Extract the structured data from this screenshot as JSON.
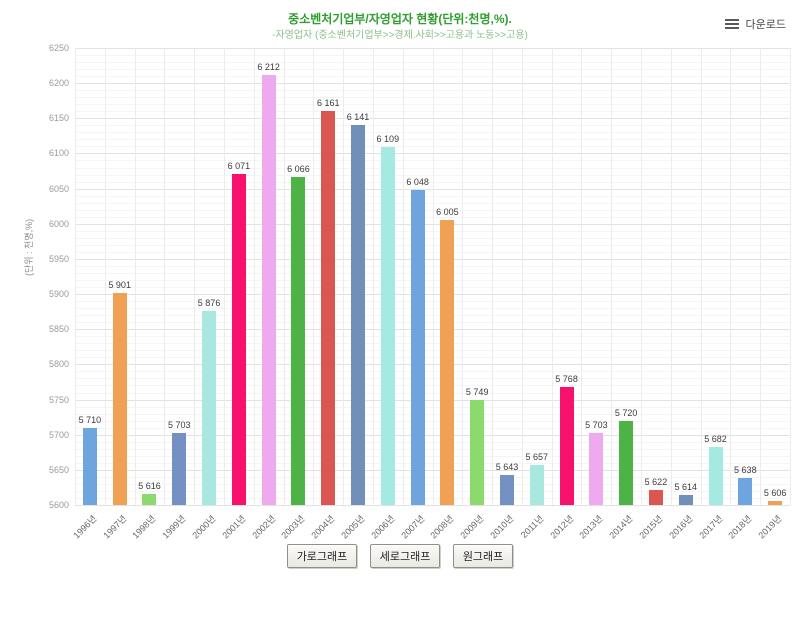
{
  "header": {
    "title": "중소벤처기업부/자영업자 현황(단위:천명,%).",
    "subtitle": "-자영업자 (중소벤처기업부>>경제.사회>>고용과 노동>>고용)"
  },
  "download": {
    "label": "다운로드"
  },
  "chart_data": {
    "type": "bar",
    "title": "중소벤처기업부/자영업자 현황(단위:천명,%)",
    "ylabel": "(단위 : 천명,%)",
    "xlabel": "",
    "categories": [
      "1996년",
      "1997년",
      "1998년",
      "1999년",
      "2000년",
      "2001년",
      "2002년",
      "2003년",
      "2004년",
      "2005년",
      "2006년",
      "2007년",
      "2008년",
      "2009년",
      "2010년",
      "2011년",
      "2012년",
      "2013년",
      "2014년",
      "2015년",
      "2016년",
      "2017년",
      "2018년",
      "2019년"
    ],
    "values": [
      5710,
      5901,
      5616,
      5703,
      5876,
      6071,
      6212,
      6066,
      6161,
      6141,
      6109,
      6048,
      6005,
      5749,
      5643,
      5657,
      5768,
      5703,
      5720,
      5622,
      5614,
      5682,
      5638,
      5606
    ],
    "value_labels": [
      "5 710",
      "5 901",
      "5 616",
      "5 703",
      "5 876",
      "6 071",
      "6 212",
      "6 066",
      "6 161",
      "6 141",
      "6 109",
      "6 048",
      "6 005",
      "5 749",
      "5 643",
      "5 657",
      "5 768",
      "5 703",
      "5 720",
      "5 622",
      "5 614",
      "5 682",
      "5 638",
      "5 606"
    ],
    "ylim": [
      5600,
      6250
    ],
    "ytick_step": 50,
    "minor_grid_step": 10,
    "grid": true,
    "legend": "none",
    "palette": [
      "#6FA5DE",
      "#F0A153",
      "#8CD96E",
      "#7590C2",
      "#A9E8E0",
      "#F5116C",
      "#EFA9EE",
      "#4DB347",
      "#DA5653",
      "#7090BA",
      "#A5E9E3"
    ]
  },
  "footer_buttons": [
    {
      "label": "가로그래프"
    },
    {
      "label": "세로그래프"
    },
    {
      "label": "원그래프"
    }
  ]
}
